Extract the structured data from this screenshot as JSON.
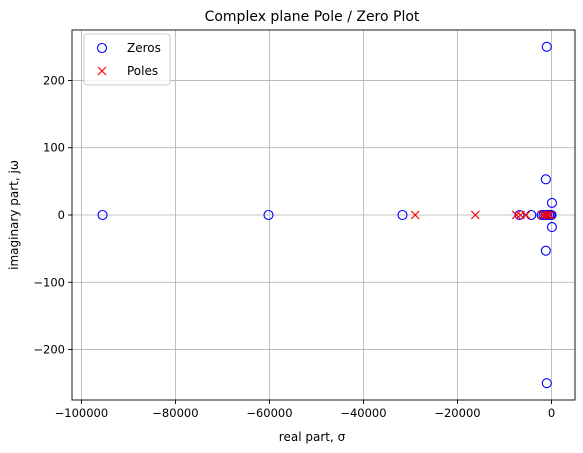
{
  "chart_data": {
    "type": "scatter",
    "title": "Complex plane Pole / Zero Plot",
    "xlabel": "real part, σ",
    "ylabel": "imaginary part, jω",
    "xlim": [
      -102000,
      5000
    ],
    "ylim": [
      -275,
      275
    ],
    "xticks": [
      -100000,
      -80000,
      -60000,
      -40000,
      -20000,
      0
    ],
    "xtick_labels": [
      "−100000",
      "−80000",
      "−60000",
      "−40000",
      "−20000",
      "0"
    ],
    "yticks": [
      -200,
      -100,
      0,
      100,
      200
    ],
    "ytick_labels": [
      "−200",
      "−100",
      "0",
      "100",
      "200"
    ],
    "grid": true,
    "legend_position": "top-left",
    "series": [
      {
        "name": "Zeros",
        "marker": "circle",
        "color": "#0000ff",
        "points": [
          [
            -95500,
            0
          ],
          [
            -60200,
            0
          ],
          [
            -31700,
            0
          ],
          [
            -6800,
            0
          ],
          [
            -4300,
            0
          ],
          [
            -2100,
            0
          ],
          [
            -1700,
            0
          ],
          [
            -1300,
            0
          ],
          [
            -900,
            0
          ],
          [
            -500,
            0
          ],
          [
            -200,
            0
          ],
          [
            -1000,
            250
          ],
          [
            -1000,
            -250
          ],
          [
            -1200,
            53
          ],
          [
            -1200,
            -53
          ],
          [
            100,
            18
          ],
          [
            100,
            -18
          ],
          [
            0,
            0
          ]
        ]
      },
      {
        "name": "Poles",
        "marker": "x",
        "color": "#ff0000",
        "points": [
          [
            -29000,
            0
          ],
          [
            -16200,
            0
          ],
          [
            -7500,
            0
          ],
          [
            -6600,
            0
          ],
          [
            -5400,
            0
          ],
          [
            -1900,
            0
          ],
          [
            -1400,
            0
          ],
          [
            -800,
            0
          ],
          [
            -300,
            0
          ]
        ]
      }
    ]
  }
}
